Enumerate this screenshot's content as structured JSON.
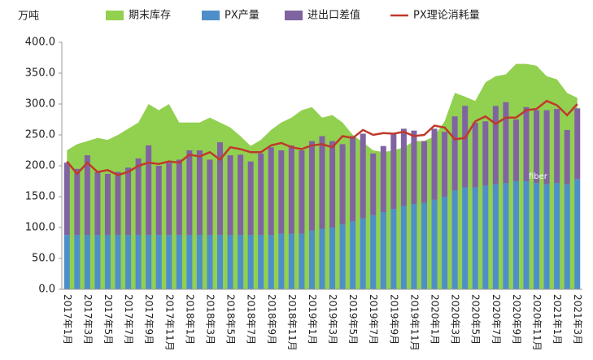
{
  "chart_data": {
    "type": "combo",
    "unit_label": "万吨",
    "annotation": "fiber",
    "categories": [
      "2017年1月",
      null,
      "2017年3月",
      null,
      "2017年5月",
      null,
      "2017年7月",
      null,
      "2017年9月",
      null,
      "2017年11月",
      null,
      "2018年1月",
      null,
      "2018年3月",
      null,
      "2018年5月",
      null,
      "2018年7月",
      null,
      "2018年9月",
      null,
      "2018年11月",
      null,
      "2019年1月",
      null,
      "2019年3月",
      null,
      "2019年5月",
      null,
      "2019年7月",
      null,
      "2019年9月",
      null,
      "2019年11月",
      null,
      "2020年1月",
      null,
      "2020年3月",
      null,
      "2020年5月",
      null,
      "2020年7月",
      null,
      "2020年9月",
      null,
      "2020年11月",
      null,
      "2021年1月",
      null,
      "2021年3月"
    ],
    "series": [
      {
        "name": "期末库存",
        "type": "area",
        "color": "#92d050",
        "values": [
          225,
          235,
          240,
          245,
          242,
          250,
          260,
          270,
          300,
          290,
          300,
          270,
          270,
          270,
          278,
          270,
          262,
          248,
          232,
          242,
          258,
          270,
          278,
          290,
          295,
          278,
          282,
          270,
          250,
          238,
          225,
          222,
          225,
          230,
          240,
          240,
          248,
          272,
          318,
          312,
          305,
          335,
          345,
          348,
          365,
          365,
          362,
          345,
          340,
          318,
          310
        ]
      },
      {
        "name": "PX产量",
        "type": "bar",
        "color": "#4f8fc9",
        "values": [
          88,
          88,
          88,
          88,
          88,
          88,
          88,
          88,
          88,
          88,
          88,
          88,
          88,
          88,
          88,
          88,
          88,
          88,
          88,
          88,
          88,
          90,
          90,
          90,
          95,
          98,
          100,
          105,
          110,
          115,
          120,
          125,
          130,
          135,
          138,
          140,
          145,
          150,
          160,
          165,
          165,
          168,
          170,
          172,
          175,
          175,
          172,
          170,
          172,
          170,
          178
        ]
      },
      {
        "name": "进出口差值",
        "type": "bar",
        "color": "#8064a2",
        "values": [
          117,
          107,
          129,
          102,
          99,
          102,
          109,
          124,
          145,
          112,
          117,
          122,
          137,
          137,
          122,
          150,
          129,
          130,
          119,
          132,
          142,
          135,
          143,
          135,
          145,
          150,
          140,
          130,
          138,
          137,
          100,
          107,
          122,
          125,
          119,
          100,
          115,
          105,
          120,
          132,
          105,
          104,
          127,
          131,
          100,
          120,
          118,
          120,
          120,
          88,
          115
        ]
      },
      {
        "name": "PX理论消耗量",
        "type": "line",
        "color": "#c0392b",
        "values": [
          207,
          187,
          205,
          190,
          193,
          185,
          190,
          200,
          205,
          203,
          207,
          205,
          218,
          215,
          222,
          210,
          230,
          227,
          222,
          222,
          233,
          237,
          230,
          227,
          233,
          235,
          230,
          248,
          245,
          258,
          250,
          253,
          252,
          255,
          248,
          250,
          265,
          262,
          243,
          245,
          272,
          280,
          268,
          278,
          278,
          290,
          292,
          305,
          298,
          282,
          300
        ]
      }
    ],
    "ylim": [
      0,
      400
    ],
    "yticks": [
      {
        "value": 0,
        "label": "0.0"
      },
      {
        "value": 50,
        "label": "50.0"
      },
      {
        "value": 100,
        "label": "100.0"
      },
      {
        "value": 150,
        "label": "150.0"
      },
      {
        "value": 200,
        "label": "200.0"
      },
      {
        "value": 250,
        "label": "250.0"
      },
      {
        "value": 300,
        "label": "300.0"
      },
      {
        "value": 350,
        "label": "350.0"
      },
      {
        "value": 400,
        "label": "400.0"
      }
    ],
    "grid": false
  }
}
